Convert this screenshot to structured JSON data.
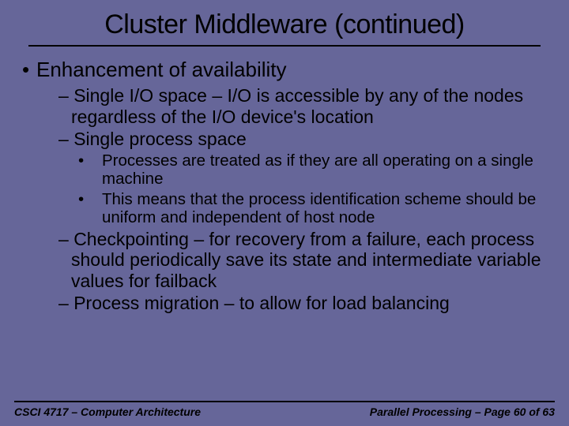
{
  "slide": {
    "title": "Cluster Middleware (continued)",
    "title_fontsize": 34,
    "background_color": "#666699",
    "text_color": "#000000",
    "underline_color": "#000000"
  },
  "content": {
    "lvl1": {
      "bullet": "•",
      "text": "Enhancement of availability"
    },
    "lvl2_items": [
      {
        "dash": "–",
        "text": "Single I/O space – I/O is accessible by any of the nodes regardless of the I/O device's location"
      },
      {
        "dash": "–",
        "text": "Single process space"
      }
    ],
    "lvl3_items": [
      {
        "dot": "•",
        "text": "Processes are treated as if they are all operating on a single machine"
      },
      {
        "dot": "•",
        "text": "This means that the process identification scheme should be uniform and independent of host node"
      }
    ],
    "lvl2_items_b": [
      {
        "dash": "–",
        "text": "Checkpointing – for recovery from a failure, each process should periodically save its state and intermediate variable values for failback"
      },
      {
        "dash": "–",
        "text": "Process migration – to allow for load balancing"
      }
    ]
  },
  "footer": {
    "left": "CSCI 4717 – Computer Architecture",
    "right": "Parallel Processing – Page 60 of 63",
    "fontsize": 14
  }
}
